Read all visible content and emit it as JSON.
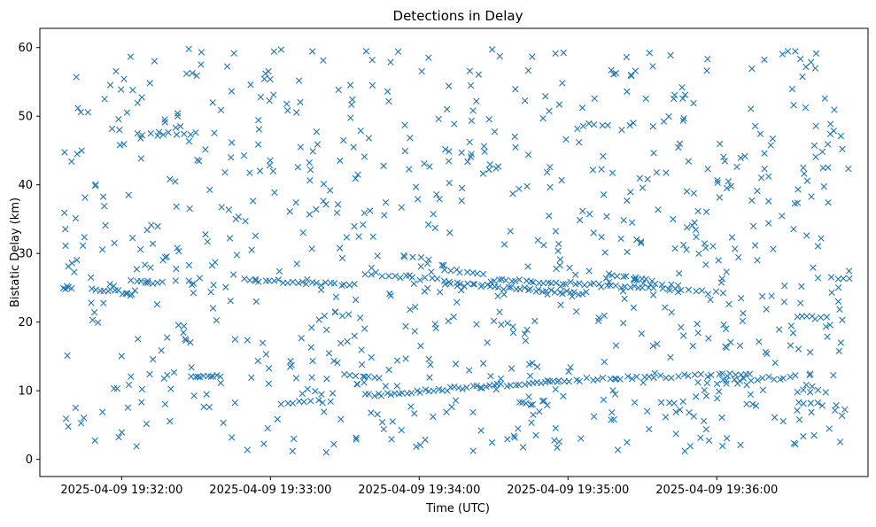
{
  "chart_data": {
    "type": "scatter",
    "title": "Detections in Delay",
    "xlabel": "Time (UTC)",
    "ylabel": "Bistatic Delay (km)",
    "marker": "x",
    "color": "#1f77b4",
    "xlim_seconds": [
      -33,
      301
    ],
    "ylim": [
      -2.5,
      62.8
    ],
    "x_ticks": [
      {
        "seconds": 0,
        "label": "2025-04-09 19:32:00"
      },
      {
        "seconds": 60,
        "label": "2025-04-09 19:33:00"
      },
      {
        "seconds": 120,
        "label": "2025-04-09 19:34:00"
      },
      {
        "seconds": 180,
        "label": "2025-04-09 19:35:00"
      },
      {
        "seconds": 240,
        "label": "2025-04-09 19:36:00"
      }
    ],
    "y_ticks": [
      0,
      10,
      20,
      30,
      40,
      50,
      60
    ],
    "x_range_seconds": [
      -24,
      294
    ],
    "y_range": [
      0.8,
      59.8
    ],
    "series_note": "Seconds relative to 2025-04-09 19:32:00 UTC",
    "tracks": [
      {
        "t_start": -24,
        "t_end": -20,
        "y_start": 25,
        "y_end": 25,
        "n": 5
      },
      {
        "t_start": -12,
        "t_end": 4,
        "y_start": 24.8,
        "y_end": 24.2,
        "n": 10
      },
      {
        "t_start": 4,
        "t_end": 16,
        "y_start": 26,
        "y_end": 25.6,
        "n": 8
      },
      {
        "t_start": 6,
        "t_end": 30,
        "y_start": 47.4,
        "y_end": 47.4,
        "n": 10
      },
      {
        "t_start": 28,
        "t_end": 40,
        "y_start": 12.2,
        "y_end": 12.0,
        "n": 10
      },
      {
        "t_start": 50,
        "t_end": 94,
        "y_start": 26.2,
        "y_end": 25.3,
        "n": 24
      },
      {
        "t_start": 64,
        "t_end": 84,
        "y_start": 8.2,
        "y_end": 8.5,
        "n": 9
      },
      {
        "t_start": 90,
        "t_end": 104,
        "y_start": 12.3,
        "y_end": 12.0,
        "n": 7
      },
      {
        "t_start": 98,
        "t_end": 176,
        "y_start": 9.3,
        "y_end": 11.5,
        "n": 46
      },
      {
        "t_start": 98,
        "t_end": 130,
        "y_start": 27.2,
        "y_end": 26.0,
        "n": 14
      },
      {
        "t_start": 114,
        "t_end": 124,
        "y_start": 29.5,
        "y_end": 29.2,
        "n": 4
      },
      {
        "t_start": 130,
        "t_end": 186,
        "y_start": 25.7,
        "y_end": 24.1,
        "n": 36
      },
      {
        "t_start": 130,
        "t_end": 146,
        "y_start": 27.6,
        "y_end": 27.0,
        "n": 8
      },
      {
        "t_start": 150,
        "t_end": 214,
        "y_start": 26.2,
        "y_end": 25.0,
        "n": 36
      },
      {
        "t_start": 160,
        "t_end": 166,
        "y_start": 8.2,
        "y_end": 8.2,
        "n": 5
      },
      {
        "t_start": 176,
        "t_end": 252,
        "y_start": 11.5,
        "y_end": 12.5,
        "n": 34
      },
      {
        "t_start": 186,
        "t_end": 196,
        "y_start": 48.8,
        "y_end": 48.8,
        "n": 5
      },
      {
        "t_start": 196,
        "t_end": 214,
        "y_start": 27.0,
        "y_end": 26.0,
        "n": 10
      },
      {
        "t_start": 210,
        "t_end": 224,
        "y_start": 25.5,
        "y_end": 25.5,
        "n": 6
      },
      {
        "t_start": 218,
        "t_end": 242,
        "y_start": 24.8,
        "y_end": 24.2,
        "n": 10
      },
      {
        "t_start": 218,
        "t_end": 226,
        "y_start": 8.3,
        "y_end": 8.2,
        "n": 4
      },
      {
        "t_start": 232,
        "t_end": 252,
        "y_start": 11.0,
        "y_end": 11.0,
        "n": 6
      },
      {
        "t_start": 242,
        "t_end": 272,
        "y_start": 11.5,
        "y_end": 12.0,
        "n": 14
      },
      {
        "t_start": 272,
        "t_end": 284,
        "y_start": 20.8,
        "y_end": 20.5,
        "n": 7
      },
      {
        "t_start": 272,
        "t_end": 284,
        "y_start": 10.0,
        "y_end": 10.0,
        "n": 5
      },
      {
        "t_start": 286,
        "t_end": 294,
        "y_start": 26.3,
        "y_end": 26.3,
        "n": 4
      }
    ],
    "clutter": {
      "count": 820,
      "t_range": [
        -24,
        294
      ],
      "y_range": [
        1,
        60
      ]
    }
  }
}
